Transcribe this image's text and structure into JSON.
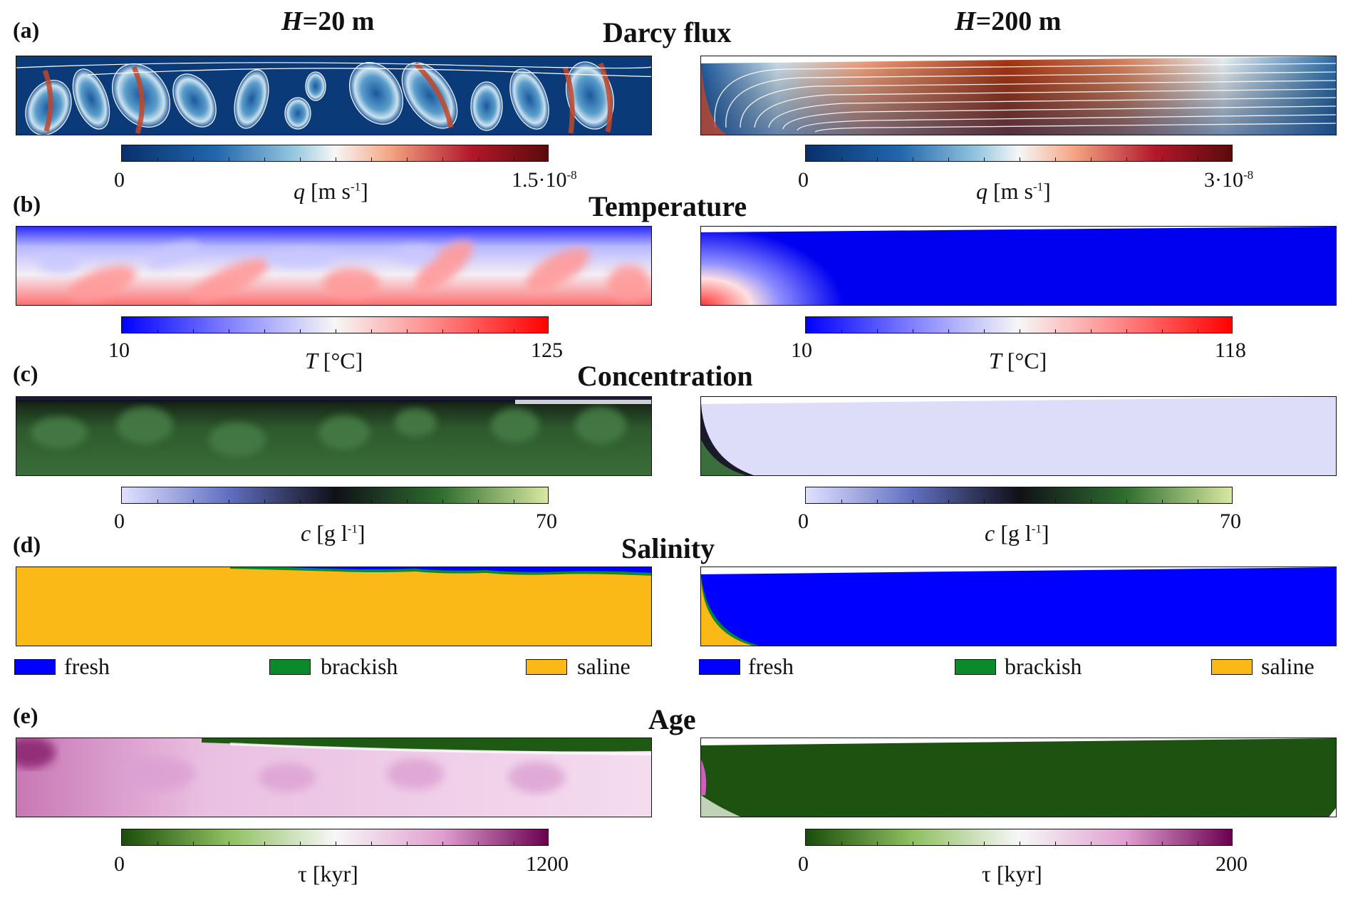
{
  "columns": {
    "left": "H=20 m",
    "right": "H=200 m"
  },
  "rows": [
    {
      "letter": "(a)",
      "title": "Darcy flux",
      "left_cb": {
        "min": "0",
        "max": "1.5·10",
        "max_exp": "-8",
        "name": "q [m s",
        "name_exp": "-1",
        "name_tail": "]"
      },
      "right_cb": {
        "min": "0",
        "max": "3·10",
        "max_exp": "-8",
        "name": "q [m s",
        "name_exp": "-1",
        "name_tail": "]"
      }
    },
    {
      "letter": "(b)",
      "title": "Temperature",
      "left_cb": {
        "min": "10",
        "max": "125",
        "name": "T [°C]"
      },
      "right_cb": {
        "min": "10",
        "max": "118",
        "name": "T [°C]"
      }
    },
    {
      "letter": "(c)",
      "title": "Concentration",
      "left_cb": {
        "min": "0",
        "max": "70",
        "name": "c [g l",
        "name_exp": "-1",
        "name_tail": "]"
      },
      "right_cb": {
        "min": "0",
        "max": "70",
        "name": "c [g l",
        "name_exp": "-1",
        "name_tail": "]"
      }
    },
    {
      "letter": "(d)",
      "title": "Salinity",
      "legend": [
        {
          "label": "fresh",
          "color": "#0000ff"
        },
        {
          "label": "brackish",
          "color": "#0a8a2a"
        },
        {
          "label": "saline",
          "color": "#fbb917"
        }
      ]
    },
    {
      "letter": "(e)",
      "title": "Age",
      "left_cb": {
        "min": "0",
        "max": "1200",
        "name": "τ [kyr]"
      },
      "right_cb": {
        "min": "0",
        "max": "200",
        "name": "τ [kyr]"
      }
    }
  ],
  "colormaps": {
    "darcy": [
      "#08306b",
      "#2166ac",
      "#92c5de",
      "#f7f7f7",
      "#f4a582",
      "#b2182b",
      "#5c0a0a"
    ],
    "temperature": [
      "#0000ff",
      "#8080ff",
      "#f7f7f7",
      "#ff8080",
      "#ff0000"
    ],
    "concentration": [
      "#e0e0ff",
      "#6070c0",
      "#101018",
      "#2e6e2e",
      "#d8e8a0"
    ],
    "age": [
      "#1a4d0a",
      "#8fbf60",
      "#f7f7f7",
      "#e0a0d0",
      "#6b0050"
    ]
  }
}
